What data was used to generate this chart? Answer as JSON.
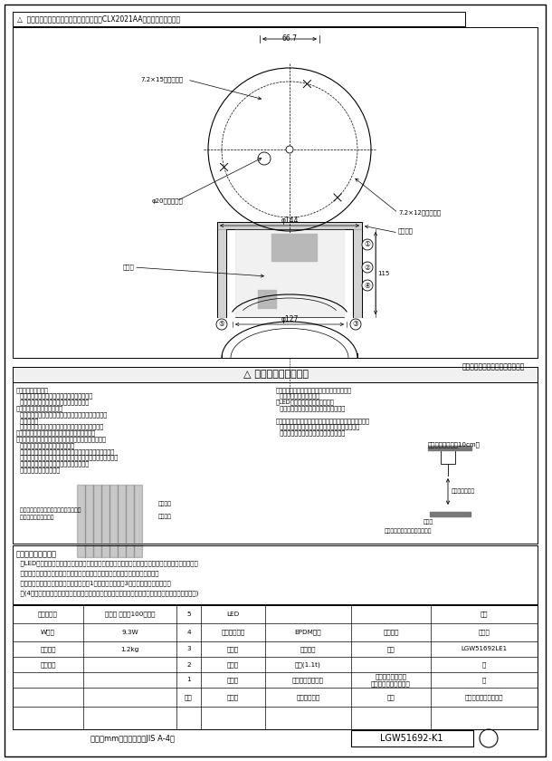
{
  "bg_color": "#ffffff",
  "lc": "#000000",
  "tc": "#000000",
  "gray": "#888888",
  "lgray": "#cccccc",
  "title_warning": "△  注意：商品には背面があります。詳細はCLX2021AAをご参照ください。",
  "safety_title": "△ 安全に関するご注意",
  "safety_left": [
    "・防雨型器具です。",
    "  浴室などの湿気の多い場所では使用しないで",
    "  ください。感電・火災の原因となります。",
    "・天井面取付専用器具です。",
    "  傾斜天井、補強のない薄い天井には、取り付けないで",
    "  ください。",
    "  指定外取り付けは、火災、落下の原因となります。",
    "・取付面よりも大きな面に取り付けてください。",
    "・取付面に凹凸がある場合、本体パッキンとのスキマを",
    "  防水シール剤で埋めてください。",
    "  また、背面より水のかかる場所へ設置しないでください。",
    "  指定外の取り付けは絶縁不良による感電の原因となります。",
    "  　本体パッキン外周部にも必ずシール材を",
    "  　塗りつけてください。"
  ],
  "safety_right": [
    "・調光器と組合わせて使用しないでください。",
    "  火災の原因となります。",
    "・LEDを直視しないでください。",
    "  目の痛みの原因になることがあります。",
    "",
    "・照射物近接範囲内にドア開閉範囲や家具などの可燃物が",
    "  近づかないように考慮して取り付けてください。",
    "  照射物の変色、火災の原因となります。"
  ],
  "irr_label": "【照射物近接距離10cm】",
  "irr_label2": "照射物近接距離",
  "irr_label3": "照射物",
  "irr_label4": "（ドア・家具・布等の可燃物）",
  "seal_label1": "本体パッキン外周部にも必ずシール材を",
  "seal_label2": "シール材",
  "seal_label3": "器具部品",
  "usage_notes_title": "＜使用上のご注意＞",
  "usage_notes": [
    "  ・LEDにはバラツキがあるため、同一品番でも商品ごとに発光色、明るさが異なる場合があります。",
    "  ・海外異地帯地帯では、当該により短期間で異常が発生するおそれがあります。",
    "  ・ほたるスイッチと接続する場合は器具1台につきスイッチ3個までご使用ください。",
    "  　(4個以上のほたるスイッチと接続すると、スイッチを切にしても器具が消灯しないことがあります)"
  ],
  "power_unit_label": "電源ユニット内蔵型・拡散タイプ",
  "dim_66_7": "66.7",
  "dim_7_2x15": "7.2×15穴　取付用",
  "dim_phi20": "φ20穴　電源用",
  "dim_phi144": "φ144",
  "dim_phi127": "φ127",
  "dim_7_2x12": "7.2×12穴　取付用",
  "dim_115": "115",
  "label_接地端子": "接地端子",
  "label_端子台": "端子台",
  "footer_left": "単位：mm　第三角法（JIS A-4）",
  "footer_model": "LGW51692-K1",
  "t_row1": [
    "適合ランプ",
    "電球色 白熱灯100形相当",
    "5",
    "LED",
    "",
    "",
    "品番"
  ],
  "t_row2": [
    "W・数",
    "9.3W",
    "4",
    "本体パッキン",
    "EPDMゴム",
    "ブラック",
    "防雨型"
  ],
  "t_row3": [
    "器具質量",
    "1.2kg",
    "3",
    "パネル",
    "アクリル",
    "乳白",
    "LGW51692LE1"
  ],
  "t_row4": [
    "特記事項",
    "",
    "2",
    "取付板",
    "鋼板(1.1t)",
    "",
    "鋼"
  ],
  "t_row5": [
    "",
    "",
    "1",
    "セード",
    "アルミダイカスト",
    "ホワイトつや消し\nポリエステル粉体塗装",
    "田"
  ],
  "t_row6": [
    "",
    "",
    "部番",
    "部品名",
    "材質・素材厚",
    "値号",
    "パナソニック株式会社"
  ]
}
